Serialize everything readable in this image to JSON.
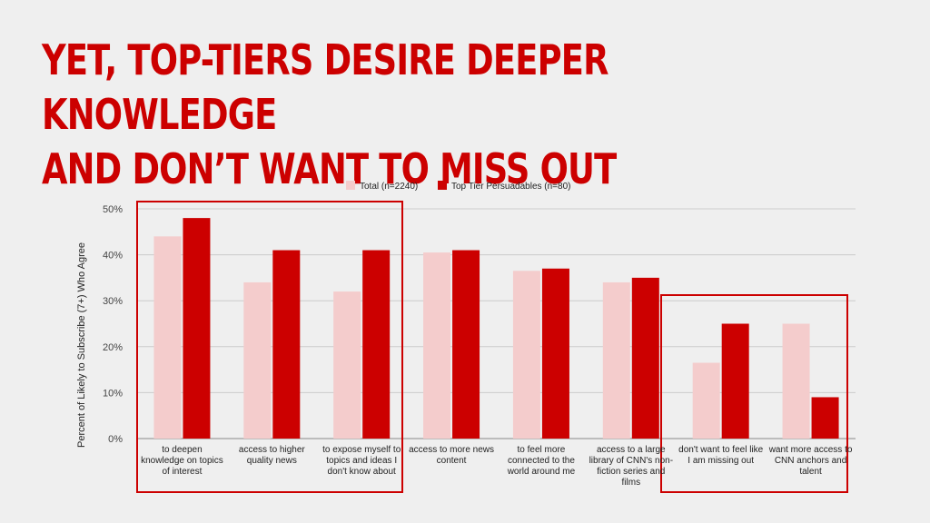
{
  "slide": {
    "title": "YET, TOP-TIERS DESIRE DEEPER KNOWLEDGE\nAND DON’T WANT TO MISS OUT"
  },
  "colors": {
    "total": "#f4cccc",
    "top_tier": "#cc0000",
    "highlight_box": "#cc0000",
    "grid": "#cccccc"
  },
  "chart_data": {
    "type": "bar",
    "title": "",
    "xlabel": "",
    "ylabel": "Percent of Likely to Subscribe (7+) Who Agree",
    "ylim": [
      0,
      50
    ],
    "yticks": [
      "0%",
      "10%",
      "20%",
      "30%",
      "40%",
      "50%"
    ],
    "legend_position": "top",
    "grid": true,
    "categories": [
      [
        "to deepen",
        "knowledge on topics",
        "of interest"
      ],
      [
        "access to higher",
        "quality news"
      ],
      [
        "to expose myself to",
        "topics and ideas I",
        "don't know about"
      ],
      [
        "access to more news",
        "content"
      ],
      [
        "to feel more",
        "connected to the",
        "world around me"
      ],
      [
        "access to a large",
        "library of CNN's non-",
        "fiction series and",
        "films"
      ],
      [
        "don't want to feel like",
        "I am missing out"
      ],
      [
        "want more access to",
        "CNN anchors and",
        "talent"
      ]
    ],
    "series": [
      {
        "name": "Total (n=2240)",
        "values": [
          44,
          34,
          32,
          40.5,
          36.5,
          34,
          16.5,
          25
        ]
      },
      {
        "name": "Top Tier Persuadables (n=80)",
        "values": [
          48,
          41,
          41,
          41,
          37,
          35,
          25,
          9
        ]
      }
    ],
    "highlight_groups": [
      [
        0,
        2
      ],
      [
        6,
        7
      ]
    ]
  }
}
